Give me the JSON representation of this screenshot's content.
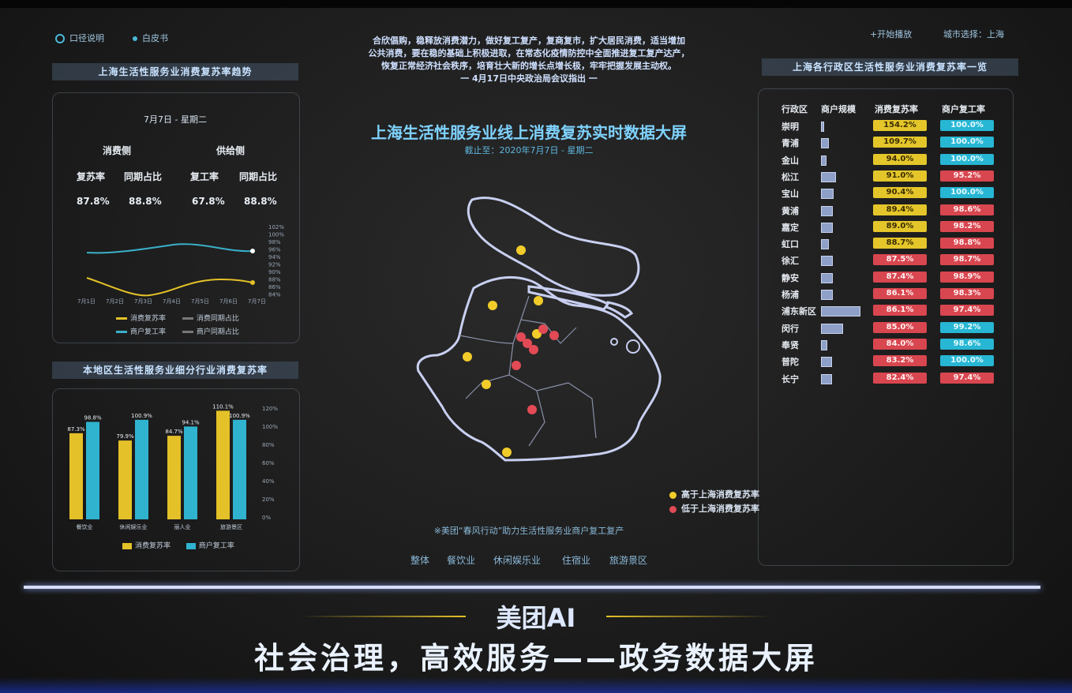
{
  "header": {
    "left_buttons": [
      {
        "icon": "target-icon",
        "label": "口径说明"
      },
      {
        "icon": "book-icon",
        "label": "白皮书"
      }
    ],
    "right_buttons": [
      {
        "label": "+开始播放"
      },
      {
        "label": "城市选择：上海"
      }
    ],
    "quote_lines": [
      "合欣倡购，稳释放消费潜力，做好复工复产，复商复市，扩大居民消费，适当增加",
      "公共消费，要在稳的基础上积极进取，在常态化疫情防控中全面推进复工复产达产，",
      "恢复正常经济社会秩序，培育壮大新的增长点增长极，牢牢把握发展主动权。",
      "一 4月17日中央政治局会议指出 一"
    ],
    "title": "上海生活性服务业线上消费复苏实时数据大屏",
    "subtitle": "截止至：2020年7月7日 - 星期二"
  },
  "left_panel": {
    "title": "上海生活性服务业消费复苏率趋势",
    "date": "7月7日 - 星期二",
    "consumer_side": "消费侧",
    "supply_side": "供给侧",
    "metrics": [
      {
        "label": "复苏率",
        "value": "87.8%"
      },
      {
        "label": "同期占比",
        "value": "88.8%"
      },
      {
        "label": "复工率",
        "value": "67.8%"
      },
      {
        "label": "同期占比",
        "value": "88.8%"
      }
    ],
    "line_chart": {
      "x_labels": [
        "7月1日",
        "7月2日",
        "7月3日",
        "7月4日",
        "7月5日",
        "7月6日",
        "7月7日"
      ],
      "y_labels": [
        "102%",
        "100%",
        "98%",
        "96%",
        "94%",
        "92%",
        "90%",
        "88%",
        "86%",
        "84%"
      ],
      "legend": [
        "消费复苏率",
        "消费同期占比",
        "商户复工率",
        "商户同期占比"
      ]
    }
  },
  "chart_data": {
    "type": "bar",
    "title": "本地区生活性服务业细分行业消费复苏率",
    "categories": [
      "餐饮业",
      "休闲娱乐业",
      "丽人业",
      "旅游景区"
    ],
    "series": [
      {
        "name": "消费复苏率",
        "values": [
          87.3,
          79.9,
          84.7,
          110.1
        ],
        "color": "#e4c128"
      },
      {
        "name": "商户复工率",
        "values": [
          98.8,
          100.9,
          94.1,
          100.9
        ],
        "color": "#2fb3cf"
      }
    ],
    "data_labels": [
      [
        "87.3%",
        "98.8%"
      ],
      [
        "79.9%",
        "100.9%"
      ],
      [
        "84.7%",
        "94.1%"
      ],
      [
        "110.1%",
        "100.9%"
      ]
    ],
    "y_tick_labels": [
      "120%",
      "100%",
      "80%",
      "60%",
      "40%",
      "20%",
      "0%"
    ],
    "ylim": [
      0,
      120
    ]
  },
  "map": {
    "legend": [
      {
        "label": "高于上海消费复苏率",
        "color": "#f1cc2a"
      },
      {
        "label": "低于上海消费复苏率",
        "color": "#e24a55"
      }
    ],
    "caption": "※美团“春风行动”助力生活性服务业商户复工复产",
    "tabs": [
      "整体",
      "餐饮业",
      "休闲娱乐业",
      "住宿业",
      "旅游景区"
    ]
  },
  "right_panel": {
    "title": "上海各行政区生活性服务业消费复苏率一览",
    "columns": [
      "行政区",
      "商户规模",
      "消费复苏率",
      "商户复工率"
    ],
    "rows": [
      {
        "name": "崇明",
        "scale": 2,
        "recovery": "154.2%",
        "r_color": "yel",
        "work": "100.0%",
        "w_color": "cyan"
      },
      {
        "name": "青浦",
        "scale": 7,
        "recovery": "109.7%",
        "r_color": "yel",
        "work": "100.0%",
        "w_color": "cyan"
      },
      {
        "name": "金山",
        "scale": 4,
        "recovery": "94.0%",
        "r_color": "yel",
        "work": "100.0%",
        "w_color": "cyan"
      },
      {
        "name": "松江",
        "scale": 14,
        "recovery": "91.0%",
        "r_color": "yel",
        "work": "95.2%",
        "w_color": "red"
      },
      {
        "name": "宝山",
        "scale": 12,
        "recovery": "90.4%",
        "r_color": "yel",
        "work": "100.0%",
        "w_color": "cyan"
      },
      {
        "name": "黄浦",
        "scale": 11,
        "recovery": "89.4%",
        "r_color": "yel",
        "work": "98.6%",
        "w_color": "red"
      },
      {
        "name": "嘉定",
        "scale": 11,
        "recovery": "89.0%",
        "r_color": "yel",
        "work": "98.2%",
        "w_color": "red"
      },
      {
        "name": "虹口",
        "scale": 7,
        "recovery": "88.7%",
        "r_color": "yel",
        "work": "98.8%",
        "w_color": "red"
      },
      {
        "name": "徐汇",
        "scale": 11,
        "recovery": "87.5%",
        "r_color": "red",
        "work": "98.7%",
        "w_color": "red"
      },
      {
        "name": "静安",
        "scale": 11,
        "recovery": "87.4%",
        "r_color": "red",
        "work": "98.9%",
        "w_color": "red"
      },
      {
        "name": "杨浦",
        "scale": 11,
        "recovery": "86.1%",
        "r_color": "red",
        "work": "98.3%",
        "w_color": "red"
      },
      {
        "name": "浦东新区",
        "scale": 40,
        "recovery": "86.1%",
        "r_color": "red",
        "work": "97.4%",
        "w_color": "red"
      },
      {
        "name": "闵行",
        "scale": 22,
        "recovery": "85.0%",
        "r_color": "red",
        "work": "99.2%",
        "w_color": "cyan"
      },
      {
        "name": "奉贤",
        "scale": 5,
        "recovery": "84.0%",
        "r_color": "red",
        "work": "98.6%",
        "w_color": "cyan"
      },
      {
        "name": "普陀",
        "scale": 10,
        "recovery": "83.2%",
        "r_color": "red",
        "work": "100.0%",
        "w_color": "cyan"
      },
      {
        "name": "长宁",
        "scale": 10,
        "recovery": "82.4%",
        "r_color": "red",
        "work": "97.4%",
        "w_color": "red"
      }
    ]
  },
  "banner": {
    "brand": "美团AI",
    "slogan": "社会治理，高效服务——政务数据大屏"
  }
}
